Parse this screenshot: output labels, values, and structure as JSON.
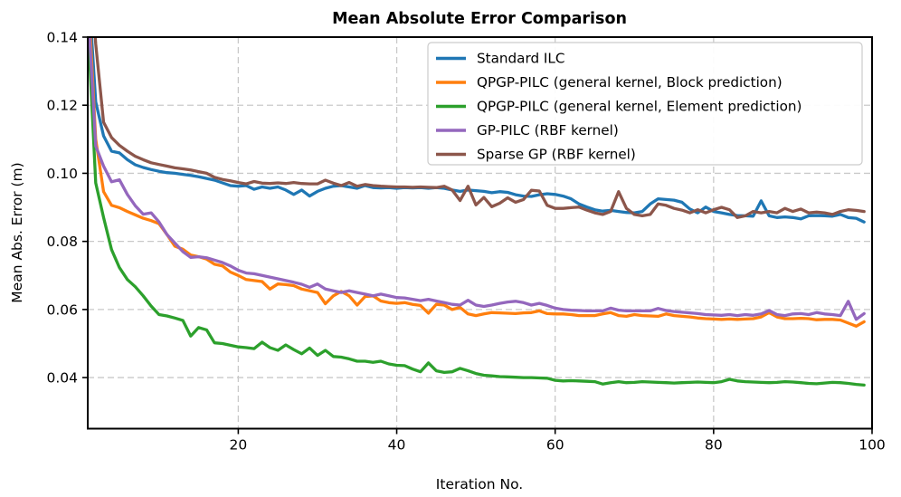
{
  "chart_data": {
    "type": "line",
    "title": "Mean Absolute Error Comparison",
    "xlabel": "Iteration No.",
    "ylabel": "Mean Abs. Error (m)",
    "xlim": [
      1,
      100
    ],
    "ylim": [
      0.025,
      0.14
    ],
    "xticks": [
      20,
      40,
      60,
      80,
      100
    ],
    "yticks": [
      0.04,
      0.06,
      0.08,
      0.1,
      0.12,
      0.14
    ],
    "grid": "dashed",
    "legend_position": "upper right",
    "x_start": 1,
    "colors": {
      "background": "#ffffff",
      "spine": "#000000",
      "grid": "#c9c9c9",
      "legend_border": "#cccccc",
      "legend_fill": "#ffffff"
    },
    "series": [
      {
        "name": "Standard ILC",
        "color": "#1f77b4",
        "values": [
          0.158,
          0.121,
          0.111,
          0.1065,
          0.106,
          0.104,
          0.1025,
          0.1017,
          0.1011,
          0.1006,
          0.1002,
          0.1,
          0.0997,
          0.0994,
          0.099,
          0.0985,
          0.098,
          0.0972,
          0.0964,
          0.0962,
          0.0964,
          0.0953,
          0.096,
          0.0956,
          0.096,
          0.0951,
          0.0938,
          0.0951,
          0.0933,
          0.0947,
          0.0956,
          0.0962,
          0.0964,
          0.096,
          0.0956,
          0.0964,
          0.0958,
          0.0957,
          0.0958,
          0.0956,
          0.0958,
          0.0957,
          0.0958,
          0.0956,
          0.0958,
          0.0956,
          0.0951,
          0.0947,
          0.0951,
          0.0949,
          0.0947,
          0.0943,
          0.0946,
          0.0944,
          0.0937,
          0.0933,
          0.0932,
          0.0937,
          0.094,
          0.0938,
          0.0933,
          0.0925,
          0.091,
          0.0901,
          0.0893,
          0.0889,
          0.0891,
          0.0888,
          0.0885,
          0.0884,
          0.0888,
          0.091,
          0.0925,
          0.0923,
          0.0921,
          0.0915,
          0.0895,
          0.0884,
          0.0901,
          0.0888,
          0.0884,
          0.0879,
          0.0876,
          0.0875,
          0.0874,
          0.0919,
          0.0875,
          0.087,
          0.0872,
          0.087,
          0.0866,
          0.0875,
          0.0876,
          0.0875,
          0.0874,
          0.0879,
          0.087,
          0.0868,
          0.0857
        ]
      },
      {
        "name": "QPGP-PILC (general kernel, Block prediction)",
        "color": "#ff7f0e",
        "values": [
          0.155,
          0.11,
          0.0946,
          0.0906,
          0.0899,
          0.0888,
          0.0878,
          0.0868,
          0.0861,
          0.0852,
          0.082,
          0.0786,
          0.0777,
          0.076,
          0.0755,
          0.0748,
          0.0733,
          0.0728,
          0.071,
          0.07,
          0.0688,
          0.0685,
          0.0682,
          0.066,
          0.0675,
          0.0673,
          0.067,
          0.066,
          0.0655,
          0.065,
          0.0617,
          0.064,
          0.0653,
          0.064,
          0.0613,
          0.0638,
          0.064,
          0.0625,
          0.062,
          0.0618,
          0.062,
          0.0615,
          0.0612,
          0.0589,
          0.0615,
          0.0613,
          0.06,
          0.0606,
          0.0587,
          0.0582,
          0.0587,
          0.0591,
          0.059,
          0.0589,
          0.0588,
          0.059,
          0.0591,
          0.0596,
          0.0588,
          0.0587,
          0.0587,
          0.0585,
          0.0582,
          0.0582,
          0.0582,
          0.0587,
          0.0591,
          0.0582,
          0.058,
          0.0585,
          0.0582,
          0.0581,
          0.058,
          0.0587,
          0.0582,
          0.058,
          0.0578,
          0.0575,
          0.0573,
          0.0572,
          0.0571,
          0.0572,
          0.0571,
          0.0572,
          0.0573,
          0.0578,
          0.0591,
          0.0578,
          0.0573,
          0.0573,
          0.0574,
          0.0573,
          0.057,
          0.0571,
          0.0571,
          0.0569,
          0.056,
          0.0551,
          0.0564
        ]
      },
      {
        "name": "QPGP-PILC (general kernel, Element prediction)",
        "color": "#2ca02c",
        "values": [
          0.145,
          0.0972,
          0.087,
          0.0776,
          0.0723,
          0.0688,
          0.0667,
          0.064,
          0.061,
          0.0585,
          0.0581,
          0.0575,
          0.0568,
          0.0522,
          0.0547,
          0.054,
          0.0502,
          0.05,
          0.0495,
          0.049,
          0.0488,
          0.0485,
          0.0504,
          0.0488,
          0.048,
          0.0496,
          0.0482,
          0.047,
          0.0487,
          0.0465,
          0.048,
          0.0462,
          0.046,
          0.0455,
          0.0448,
          0.0448,
          0.0445,
          0.0448,
          0.044,
          0.0436,
          0.0435,
          0.0425,
          0.0417,
          0.0443,
          0.042,
          0.0415,
          0.0417,
          0.0427,
          0.042,
          0.0412,
          0.0407,
          0.0405,
          0.0403,
          0.0402,
          0.0401,
          0.04,
          0.04,
          0.0399,
          0.0398,
          0.0392,
          0.039,
          0.0391,
          0.039,
          0.0389,
          0.0388,
          0.0381,
          0.0385,
          0.0388,
          0.0385,
          0.0386,
          0.0388,
          0.0387,
          0.0386,
          0.0385,
          0.0384,
          0.0385,
          0.0386,
          0.0387,
          0.0386,
          0.0385,
          0.0388,
          0.0395,
          0.039,
          0.0388,
          0.0387,
          0.0386,
          0.0385,
          0.0386,
          0.0388,
          0.0387,
          0.0385,
          0.0383,
          0.0382,
          0.0384,
          0.0386,
          0.0385,
          0.0383,
          0.038,
          0.0378
        ]
      },
      {
        "name": "GP-PILC (RBF kernel)",
        "color": "#9467bd",
        "values": [
          0.15,
          0.108,
          0.1021,
          0.0975,
          0.0981,
          0.0938,
          0.0905,
          0.088,
          0.0884,
          0.0857,
          0.082,
          0.0795,
          0.077,
          0.0753,
          0.0755,
          0.0752,
          0.0745,
          0.0738,
          0.0728,
          0.0715,
          0.0707,
          0.0705,
          0.07,
          0.0695,
          0.069,
          0.0685,
          0.068,
          0.0674,
          0.0665,
          0.0675,
          0.066,
          0.0655,
          0.065,
          0.0655,
          0.065,
          0.0645,
          0.064,
          0.0645,
          0.064,
          0.0635,
          0.0634,
          0.063,
          0.0626,
          0.063,
          0.0625,
          0.062,
          0.0615,
          0.0613,
          0.0627,
          0.0613,
          0.0609,
          0.0613,
          0.0618,
          0.0622,
          0.0624,
          0.062,
          0.0613,
          0.0618,
          0.0612,
          0.0604,
          0.06,
          0.0598,
          0.0597,
          0.0596,
          0.0596,
          0.0596,
          0.0604,
          0.0598,
          0.0596,
          0.0596,
          0.0596,
          0.0596,
          0.0603,
          0.0597,
          0.0594,
          0.0592,
          0.059,
          0.0588,
          0.0585,
          0.0584,
          0.0583,
          0.0585,
          0.0582,
          0.0585,
          0.0583,
          0.0587,
          0.0597,
          0.0585,
          0.0582,
          0.0587,
          0.0588,
          0.0585,
          0.0591,
          0.0587,
          0.0585,
          0.0582,
          0.0624,
          0.0571,
          0.0588
        ]
      },
      {
        "name": "Sparse GP (RBF kernel)",
        "color": "#8c564b",
        "values": [
          0.17,
          0.138,
          0.115,
          0.1105,
          0.1082,
          0.1065,
          0.105,
          0.104,
          0.1031,
          0.1026,
          0.1021,
          0.1016,
          0.1013,
          0.101,
          0.1005,
          0.1,
          0.0988,
          0.0982,
          0.0978,
          0.0973,
          0.0969,
          0.0976,
          0.0971,
          0.097,
          0.0972,
          0.097,
          0.0973,
          0.097,
          0.0969,
          0.0969,
          0.098,
          0.0971,
          0.0964,
          0.0973,
          0.0962,
          0.0967,
          0.0964,
          0.0962,
          0.0961,
          0.096,
          0.096,
          0.0959,
          0.096,
          0.0959,
          0.0958,
          0.0962,
          0.0951,
          0.092,
          0.0962,
          0.0907,
          0.0929,
          0.0902,
          0.0912,
          0.0928,
          0.0915,
          0.0923,
          0.095,
          0.0948,
          0.0906,
          0.0897,
          0.0897,
          0.0899,
          0.0901,
          0.0892,
          0.0884,
          0.0879,
          0.0888,
          0.0946,
          0.0897,
          0.0879,
          0.0875,
          0.0879,
          0.091,
          0.0906,
          0.0897,
          0.0892,
          0.0884,
          0.0893,
          0.0884,
          0.0893,
          0.09,
          0.0893,
          0.087,
          0.0875,
          0.0888,
          0.0884,
          0.0888,
          0.0884,
          0.0897,
          0.0888,
          0.0895,
          0.0884,
          0.0886,
          0.0884,
          0.0879,
          0.0888,
          0.0893,
          0.0891,
          0.0888
        ]
      }
    ]
  }
}
